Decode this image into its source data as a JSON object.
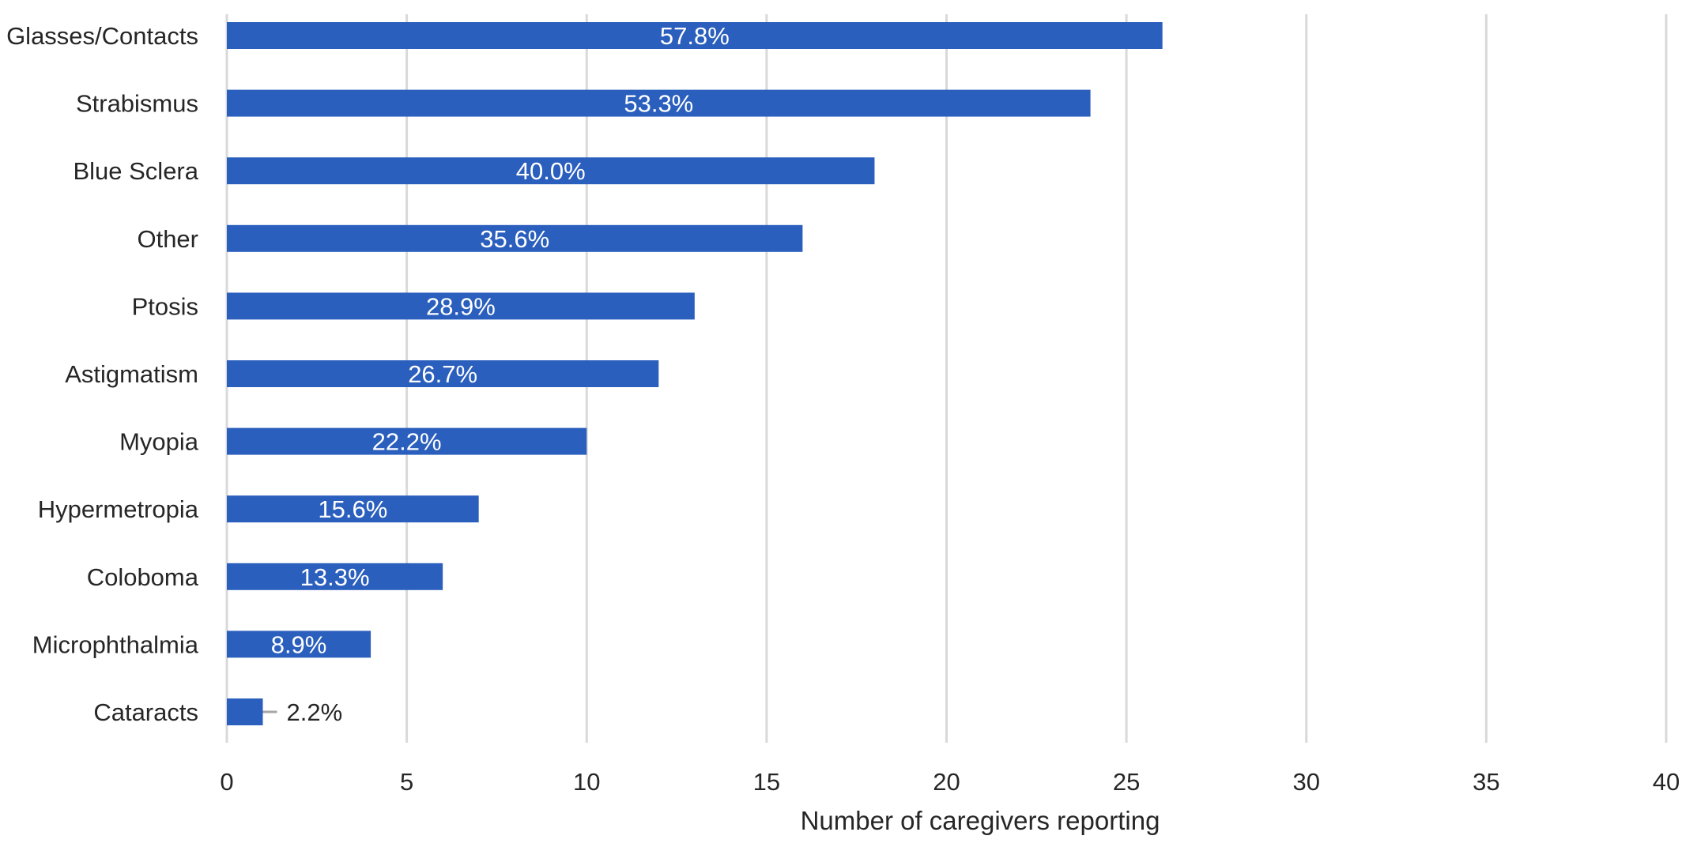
{
  "chart_data": {
    "type": "bar",
    "orientation": "horizontal",
    "categories": [
      "Glasses/Contacts",
      "Strabismus",
      "Blue Sclera",
      "Other",
      "Ptosis",
      "Astigmatism",
      "Myopia",
      "Hypermetropia",
      "Coloboma",
      "Microphthalmia",
      "Cataracts"
    ],
    "values": [
      26,
      24,
      18,
      16,
      13,
      12,
      10,
      7,
      6,
      4,
      1
    ],
    "data_labels": [
      "57.8%",
      "53.3%",
      "40.0%",
      "35.6%",
      "28.9%",
      "26.7%",
      "22.2%",
      "15.6%",
      "13.3%",
      "8.9%",
      "2.2%"
    ],
    "xlabel": "Number of caregivers reporting",
    "ylabel": "",
    "xlim": [
      0,
      40
    ],
    "xticks": [
      0,
      5,
      10,
      15,
      20,
      25,
      30,
      35,
      40
    ],
    "grid": "vertical",
    "legend": "none",
    "colors": {
      "bar": "#2b5fbd",
      "grid": "#d9d9d9",
      "label_inside": "#ffffff",
      "label_outside": "#262626",
      "leader": "#a6a6a6"
    }
  }
}
